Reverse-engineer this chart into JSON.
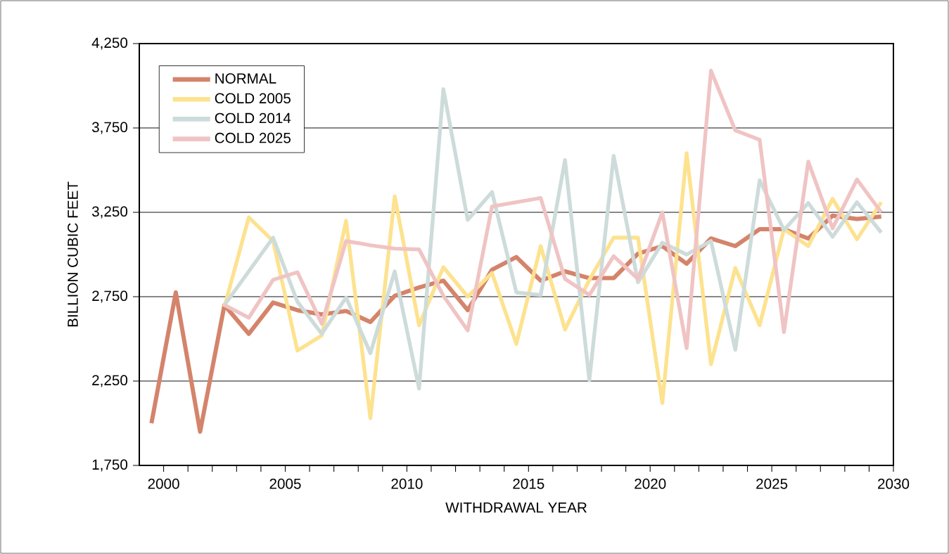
{
  "chart_data": {
    "type": "line",
    "xlabel": "WITHDRAWAL YEAR",
    "ylabel": "BILLION CUBIC FEET",
    "xlim": [
      1999,
      2030
    ],
    "ylim": [
      1750,
      4250
    ],
    "xticks": [
      2000,
      {
        "value": 2001,
        "label": null
      },
      {
        "value": 2002,
        "label": null
      },
      {
        "value": 2003,
        "label": null
      },
      {
        "value": 2004,
        "label": null
      },
      2005,
      {
        "value": 2006,
        "label": null
      },
      {
        "value": 2007,
        "label": null
      },
      {
        "value": 2008,
        "label": null
      },
      {
        "value": 2009,
        "label": null
      },
      2010,
      {
        "value": 2011,
        "label": null
      },
      {
        "value": 2012,
        "label": null
      },
      {
        "value": 2013,
        "label": null
      },
      {
        "value": 2014,
        "label": null
      },
      2015,
      {
        "value": 2016,
        "label": null
      },
      {
        "value": 2017,
        "label": null
      },
      {
        "value": 2018,
        "label": null
      },
      {
        "value": 2019,
        "label": null
      },
      2020,
      {
        "value": 2021,
        "label": null
      },
      {
        "value": 2022,
        "label": null
      },
      {
        "value": 2023,
        "label": null
      },
      {
        "value": 2024,
        "label": null
      },
      2025,
      {
        "value": 2026,
        "label": null
      },
      {
        "value": 2027,
        "label": null
      },
      {
        "value": 2028,
        "label": null
      },
      {
        "value": 2029,
        "label": null
      },
      2030
    ],
    "yticks": [
      {
        "value": 1750,
        "label": "1,750"
      },
      {
        "value": 2250,
        "label": "2,250"
      },
      {
        "value": 2750,
        "label": "2,750"
      },
      {
        "value": 3250,
        "label": "3,250"
      },
      {
        "value": 3750,
        "label": "3,750"
      },
      {
        "value": 4250,
        "label": "4,250"
      }
    ],
    "grid": "y",
    "legend": "top left",
    "marker": "none",
    "line_style": "solid",
    "series": [
      {
        "name": "NORMAL",
        "color": "#d4846b",
        "x": [
          1999.5,
          2000.5,
          2001.5,
          2002.5,
          2003.5,
          2004.5,
          2005.5,
          2006.5,
          2007.5,
          2008.5,
          2009.5,
          2010.5,
          2011.5,
          2012.5,
          2013.5,
          2014.5,
          2015.5,
          2016.5,
          2017.5,
          2018.5,
          2019.5,
          2020.5,
          2021.5,
          2022.5,
          2023.5,
          2024.5,
          2025.5,
          2026.5,
          2027.5,
          2028.5,
          2029.5
        ],
        "values": [
          2000,
          2775,
          1950,
          2700,
          2530,
          2715,
          2670,
          2645,
          2665,
          2600,
          2755,
          2805,
          2845,
          2670,
          2910,
          2985,
          2845,
          2900,
          2860,
          2860,
          3005,
          3050,
          2945,
          3095,
          3050,
          3150,
          3150,
          3095,
          3230,
          3210,
          3225
        ]
      },
      {
        "name": "COLD 2005",
        "color": "#fde28f",
        "x": [
          2002.5,
          2003.5,
          2004.5,
          2005.5,
          2006.5,
          2007.5,
          2008.5,
          2009.5,
          2010.5,
          2011.5,
          2012.5,
          2013.5,
          2014.5,
          2015.5,
          2016.5,
          2017.5,
          2018.5,
          2019.5,
          2020.5,
          2021.5,
          2022.5,
          2023.5,
          2024.5,
          2025.5,
          2026.5,
          2027.5,
          2028.5,
          2029.5
        ],
        "values": [
          2690,
          3220,
          3080,
          2430,
          2520,
          3200,
          2030,
          3345,
          2580,
          2925,
          2750,
          2890,
          2470,
          3050,
          2555,
          2850,
          3100,
          3100,
          2120,
          3600,
          2350,
          2920,
          2580,
          3150,
          3050,
          3330,
          3090,
          3310
        ]
      },
      {
        "name": "COLD 2014",
        "color": "#cddcda",
        "x": [
          2002.5,
          2003.5,
          2004.5,
          2005.5,
          2006.5,
          2007.5,
          2008.5,
          2009.5,
          2010.5,
          2011.5,
          2012.5,
          2013.5,
          2014.5,
          2015.5,
          2016.5,
          2017.5,
          2018.5,
          2019.5,
          2020.5,
          2021.5,
          2022.5,
          2023.5,
          2024.5,
          2025.5,
          2026.5,
          2027.5,
          2028.5,
          2029.5
        ],
        "values": [
          2700,
          2900,
          3100,
          2720,
          2530,
          2745,
          2415,
          2900,
          2205,
          3980,
          3205,
          3370,
          2775,
          2760,
          3560,
          2255,
          3585,
          2835,
          3070,
          3000,
          3080,
          2435,
          3440,
          3145,
          3305,
          3105,
          3310,
          3130
        ]
      },
      {
        "name": "COLD 2025",
        "color": "#f0c4c4",
        "x": [
          2002.5,
          2003.5,
          2004.5,
          2005.5,
          2006.5,
          2007.5,
          2008.5,
          2009.5,
          2010.5,
          2011.5,
          2012.5,
          2013.5,
          2014.5,
          2015.5,
          2016.5,
          2017.5,
          2018.5,
          2019.5,
          2020.5,
          2021.5,
          2022.5,
          2023.5,
          2024.5,
          2025.5,
          2026.5,
          2027.5,
          2028.5,
          2029.5
        ],
        "values": [
          2700,
          2625,
          2850,
          2895,
          2590,
          3080,
          3055,
          3035,
          3030,
          2755,
          2550,
          3285,
          3310,
          3335,
          2855,
          2760,
          2990,
          2855,
          3250,
          2445,
          4090,
          3735,
          3680,
          2540,
          3550,
          3155,
          3445,
          3250
        ]
      }
    ]
  }
}
